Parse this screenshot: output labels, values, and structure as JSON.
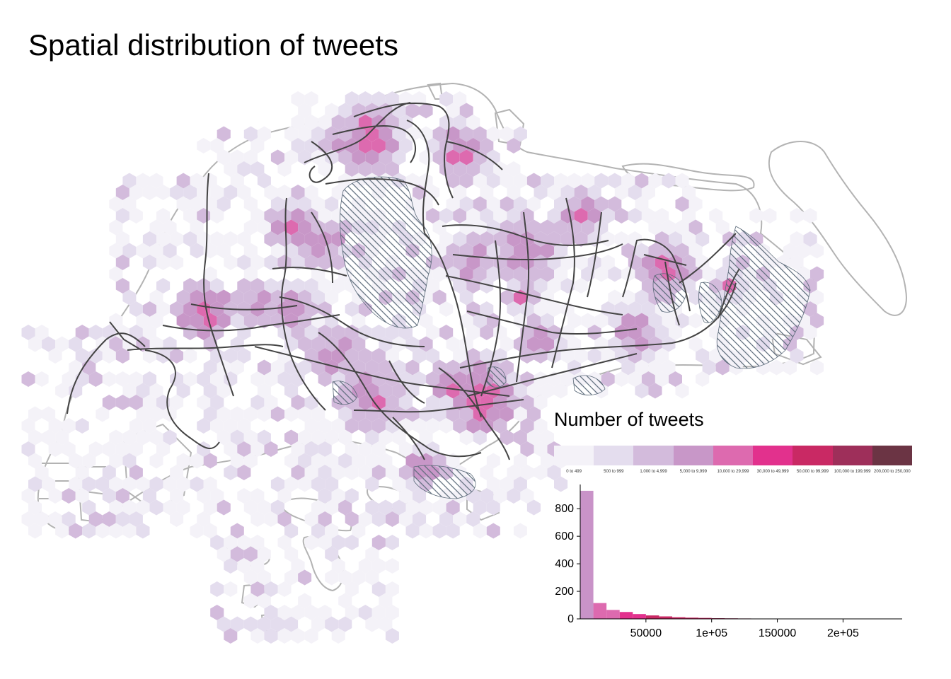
{
  "title": "Spatial distribution of tweets",
  "legend": {
    "title": "Number of tweets",
    "classes": [
      {
        "label": "0 to 499",
        "color": "#f4f2f8"
      },
      {
        "label": "500 to 999",
        "color": "#e4ddee"
      },
      {
        "label": "1,000 to 4,999",
        "color": "#d3bbdc"
      },
      {
        "label": "5,000 to 9,999",
        "color": "#c897c8"
      },
      {
        "label": "10,000 to 29,999",
        "color": "#dd6aaf"
      },
      {
        "label": "30,000 to 49,999",
        "color": "#e2318d"
      },
      {
        "label": "50,000 to 99,999",
        "color": "#c92964"
      },
      {
        "label": "100,000 to 199,999",
        "color": "#9e2f5a"
      },
      {
        "label": "200,000 to 250,000",
        "color": "#6b3444"
      }
    ]
  },
  "colors": {
    "coastline": "#b3b3b3",
    "roads": "#444444",
    "hatch": "#5c6b7a",
    "histogram_bar": "#c993c8"
  },
  "chart_data": {
    "type": "bar",
    "x_ticks": [
      "50000",
      "1e+05",
      "150000",
      "2e+05"
    ],
    "x_tick_values": [
      50000,
      100000,
      150000,
      200000
    ],
    "y_ticks": [
      "0",
      "200",
      "400",
      "600",
      "800"
    ],
    "y_tick_values": [
      0,
      200,
      400,
      600,
      800
    ],
    "xlim": [
      0,
      245000
    ],
    "ylim": [
      0,
      950
    ],
    "bin_width": 10000,
    "bins": [
      {
        "x0": 0,
        "count": 930,
        "color": "#c993c8"
      },
      {
        "x0": 10000,
        "count": 115,
        "color": "#dd6aaf"
      },
      {
        "x0": 20000,
        "count": 65,
        "color": "#dd6aaf"
      },
      {
        "x0": 30000,
        "count": 50,
        "color": "#e2318d"
      },
      {
        "x0": 40000,
        "count": 35,
        "color": "#e2318d"
      },
      {
        "x0": 50000,
        "count": 25,
        "color": "#c92964"
      },
      {
        "x0": 60000,
        "count": 18,
        "color": "#c92964"
      },
      {
        "x0": 70000,
        "count": 12,
        "color": "#c92964"
      },
      {
        "x0": 80000,
        "count": 9,
        "color": "#c92964"
      },
      {
        "x0": 90000,
        "count": 7,
        "color": "#c92964"
      },
      {
        "x0": 100000,
        "count": 5,
        "color": "#9e2f5a"
      },
      {
        "x0": 110000,
        "count": 4,
        "color": "#9e2f5a"
      },
      {
        "x0": 120000,
        "count": 3,
        "color": "#9e2f5a"
      },
      {
        "x0": 130000,
        "count": 2,
        "color": "#9e2f5a"
      },
      {
        "x0": 140000,
        "count": 2,
        "color": "#9e2f5a"
      },
      {
        "x0": 150000,
        "count": 2,
        "color": "#9e2f5a"
      },
      {
        "x0": 160000,
        "count": 1,
        "color": "#9e2f5a"
      },
      {
        "x0": 170000,
        "count": 1,
        "color": "#9e2f5a"
      },
      {
        "x0": 180000,
        "count": 1,
        "color": "#9e2f5a"
      },
      {
        "x0": 190000,
        "count": 1,
        "color": "#9e2f5a"
      },
      {
        "x0": 200000,
        "count": 1,
        "color": "#6b3444"
      },
      {
        "x0": 210000,
        "count": 1,
        "color": "#6b3444"
      },
      {
        "x0": 220000,
        "count": 1,
        "color": "#6b3444"
      },
      {
        "x0": 230000,
        "count": 1,
        "color": "#6b3444"
      }
    ]
  }
}
